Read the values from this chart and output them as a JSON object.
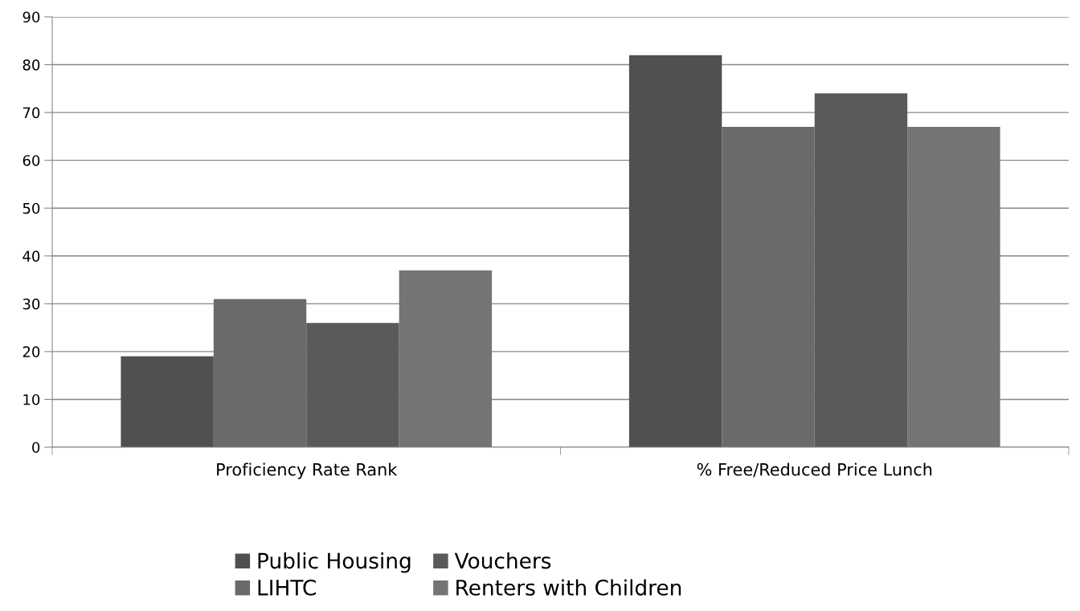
{
  "chart_data": {
    "type": "bar",
    "categories": [
      "Proficiency Rate Rank",
      "% Free/Reduced Price Lunch"
    ],
    "series": [
      {
        "name": "Public Housing",
        "color": "#505050",
        "values": [
          19,
          82
        ]
      },
      {
        "name": "LIHTC",
        "color": "#6a6a6a",
        "values": [
          31,
          67
        ]
      },
      {
        "name": "Vouchers",
        "color": "#5a5a5a",
        "values": [
          26,
          74
        ]
      },
      {
        "name": "Renters with Children",
        "color": "#747474",
        "values": [
          37,
          67
        ]
      }
    ],
    "ylim": [
      0,
      90
    ],
    "yticks": [
      0,
      10,
      20,
      30,
      40,
      50,
      60,
      70,
      80,
      90
    ],
    "grid": "y",
    "legend": "bottom"
  }
}
